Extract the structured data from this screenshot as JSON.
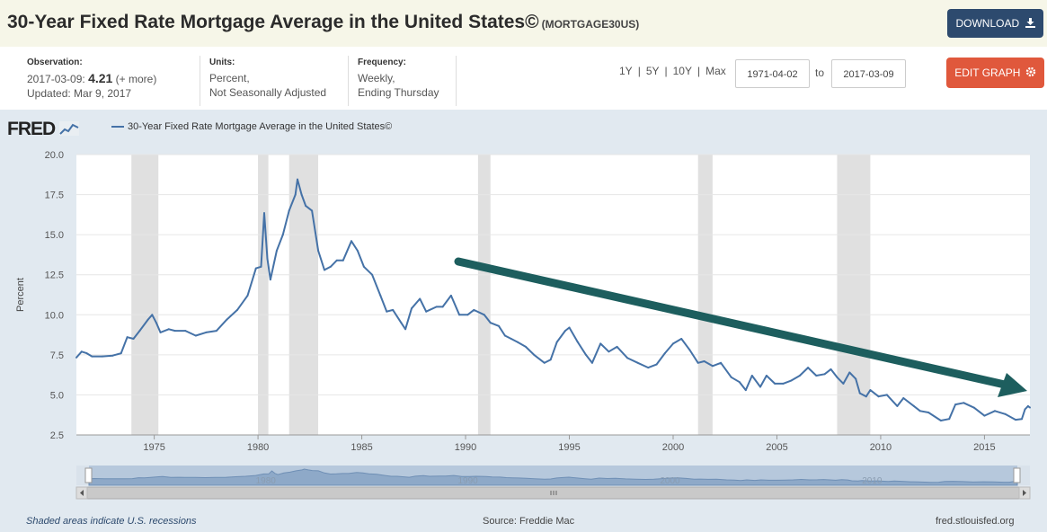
{
  "header": {
    "title": "30-Year Fixed Rate Mortgage Average in the United States©",
    "series_code": "(MORTGAGE30US)",
    "download_label": "DOWNLOAD"
  },
  "info": {
    "observation_label": "Observation:",
    "observation_date": "2017-03-09:",
    "observation_value": "4.21",
    "observation_more": "(+ more)",
    "updated": "Updated: Mar 9, 2017",
    "units_label": "Units:",
    "units_line1": "Percent,",
    "units_line2": "Not Seasonally Adjusted",
    "frequency_label": "Frequency:",
    "frequency_line1": "Weekly,",
    "frequency_line2": "Ending Thursday"
  },
  "controls": {
    "ranges": [
      "1Y",
      "5Y",
      "10Y",
      "Max"
    ],
    "separator": "|",
    "start_date": "1971-04-02",
    "to_label": "to",
    "end_date": "2017-03-09",
    "edit_label": "EDIT GRAPH"
  },
  "brand": {
    "logo": "FRED"
  },
  "footer": {
    "recession_note": "Shaded areas indicate U.S. recessions",
    "source": "Source: Freddie Mac",
    "site": "fred.stlouisfed.org"
  },
  "colors": {
    "series": "#4572a7",
    "recession": "#e0e0e0",
    "arrow": "#1d5e5e",
    "download_button": "#2d4a6e",
    "edit_button": "#e0583c"
  },
  "icons": {
    "download": "download-icon",
    "edit": "gear-icon",
    "logo_chart": "chart-icon",
    "scroll_left": "chevron-left-icon",
    "scroll_right": "chevron-right-icon"
  },
  "chart_data": {
    "type": "line",
    "ylabel": "Percent",
    "xlim": [
      1971.25,
      2017.19
    ],
    "ylim": [
      2.5,
      20.0
    ],
    "x_ticks": [
      1975,
      1980,
      1985,
      1990,
      1995,
      2000,
      2005,
      2010,
      2015
    ],
    "y_ticks": [
      2.5,
      5.0,
      7.5,
      10.0,
      12.5,
      15.0,
      17.5,
      20.0
    ],
    "y_tick_labels": [
      "2.5",
      "5.0",
      "7.5",
      "10.0",
      "12.5",
      "15.0",
      "17.5",
      "20.0"
    ],
    "grid": true,
    "recessions": [
      [
        1973.9,
        1975.2
      ],
      [
        1980.0,
        1980.5
      ],
      [
        1981.5,
        1982.9
      ],
      [
        1990.6,
        1991.2
      ],
      [
        2001.2,
        2001.9
      ],
      [
        2007.9,
        2009.5
      ]
    ],
    "series": [
      {
        "name": "30-Year Fixed Rate Mortgage Average in the United States©",
        "points": [
          [
            1971.25,
            7.33
          ],
          [
            1971.5,
            7.7
          ],
          [
            1971.75,
            7.6
          ],
          [
            1972.0,
            7.4
          ],
          [
            1972.5,
            7.4
          ],
          [
            1973.0,
            7.45
          ],
          [
            1973.4,
            7.6
          ],
          [
            1973.7,
            8.6
          ],
          [
            1974.0,
            8.5
          ],
          [
            1974.3,
            9.0
          ],
          [
            1974.7,
            9.7
          ],
          [
            1974.9,
            10.0
          ],
          [
            1975.1,
            9.5
          ],
          [
            1975.3,
            8.9
          ],
          [
            1975.7,
            9.1
          ],
          [
            1976.0,
            9.0
          ],
          [
            1976.5,
            9.0
          ],
          [
            1977.0,
            8.7
          ],
          [
            1977.5,
            8.9
          ],
          [
            1978.0,
            9.0
          ],
          [
            1978.5,
            9.7
          ],
          [
            1979.0,
            10.3
          ],
          [
            1979.5,
            11.2
          ],
          [
            1979.9,
            12.9
          ],
          [
            1980.15,
            13.0
          ],
          [
            1980.3,
            16.35
          ],
          [
            1980.45,
            13.5
          ],
          [
            1980.6,
            12.2
          ],
          [
            1980.9,
            14.0
          ],
          [
            1981.2,
            15.0
          ],
          [
            1981.5,
            16.5
          ],
          [
            1981.8,
            17.5
          ],
          [
            1981.9,
            18.45
          ],
          [
            1982.1,
            17.5
          ],
          [
            1982.3,
            16.8
          ],
          [
            1982.6,
            16.5
          ],
          [
            1982.9,
            14.0
          ],
          [
            1983.2,
            12.8
          ],
          [
            1983.5,
            13.0
          ],
          [
            1983.8,
            13.4
          ],
          [
            1984.1,
            13.4
          ],
          [
            1984.5,
            14.6
          ],
          [
            1984.8,
            14.0
          ],
          [
            1985.1,
            13.0
          ],
          [
            1985.5,
            12.5
          ],
          [
            1985.9,
            11.2
          ],
          [
            1986.2,
            10.2
          ],
          [
            1986.5,
            10.3
          ],
          [
            1986.9,
            9.5
          ],
          [
            1987.1,
            9.1
          ],
          [
            1987.4,
            10.4
          ],
          [
            1987.8,
            11.0
          ],
          [
            1988.1,
            10.2
          ],
          [
            1988.6,
            10.5
          ],
          [
            1988.9,
            10.5
          ],
          [
            1989.3,
            11.2
          ],
          [
            1989.7,
            10.0
          ],
          [
            1990.1,
            10.0
          ],
          [
            1990.4,
            10.3
          ],
          [
            1990.9,
            10.0
          ],
          [
            1991.2,
            9.5
          ],
          [
            1991.6,
            9.3
          ],
          [
            1991.9,
            8.7
          ],
          [
            1992.2,
            8.5
          ],
          [
            1992.5,
            8.3
          ],
          [
            1992.9,
            8.0
          ],
          [
            1993.3,
            7.5
          ],
          [
            1993.8,
            7.0
          ],
          [
            1994.1,
            7.2
          ],
          [
            1994.4,
            8.3
          ],
          [
            1994.8,
            9.0
          ],
          [
            1995.0,
            9.2
          ],
          [
            1995.4,
            8.3
          ],
          [
            1995.8,
            7.5
          ],
          [
            1996.1,
            7.0
          ],
          [
            1996.5,
            8.2
          ],
          [
            1996.9,
            7.7
          ],
          [
            1997.3,
            8.0
          ],
          [
            1997.8,
            7.3
          ],
          [
            1998.3,
            7.0
          ],
          [
            1998.8,
            6.7
          ],
          [
            1999.2,
            6.9
          ],
          [
            1999.6,
            7.6
          ],
          [
            2000.0,
            8.2
          ],
          [
            2000.4,
            8.5
          ],
          [
            2000.8,
            7.8
          ],
          [
            2001.2,
            7.0
          ],
          [
            2001.5,
            7.1
          ],
          [
            2001.9,
            6.8
          ],
          [
            2002.3,
            7.0
          ],
          [
            2002.8,
            6.1
          ],
          [
            2003.2,
            5.8
          ],
          [
            2003.5,
            5.3
          ],
          [
            2003.8,
            6.2
          ],
          [
            2004.2,
            5.5
          ],
          [
            2004.5,
            6.2
          ],
          [
            2004.9,
            5.7
          ],
          [
            2005.3,
            5.7
          ],
          [
            2005.7,
            5.9
          ],
          [
            2006.1,
            6.2
          ],
          [
            2006.5,
            6.7
          ],
          [
            2006.9,
            6.2
          ],
          [
            2007.3,
            6.3
          ],
          [
            2007.6,
            6.6
          ],
          [
            2007.9,
            6.1
          ],
          [
            2008.2,
            5.7
          ],
          [
            2008.5,
            6.4
          ],
          [
            2008.8,
            6.0
          ],
          [
            2009.0,
            5.1
          ],
          [
            2009.3,
            4.9
          ],
          [
            2009.5,
            5.3
          ],
          [
            2009.9,
            4.9
          ],
          [
            2010.3,
            5.0
          ],
          [
            2010.8,
            4.3
          ],
          [
            2011.1,
            4.8
          ],
          [
            2011.6,
            4.3
          ],
          [
            2011.9,
            4.0
          ],
          [
            2012.3,
            3.9
          ],
          [
            2012.9,
            3.4
          ],
          [
            2013.3,
            3.5
          ],
          [
            2013.6,
            4.4
          ],
          [
            2014.0,
            4.5
          ],
          [
            2014.5,
            4.2
          ],
          [
            2015.0,
            3.7
          ],
          [
            2015.5,
            4.0
          ],
          [
            2016.0,
            3.8
          ],
          [
            2016.5,
            3.45
          ],
          [
            2016.8,
            3.5
          ],
          [
            2016.95,
            4.1
          ],
          [
            2017.1,
            4.3
          ],
          [
            2017.19,
            4.21
          ]
        ]
      }
    ]
  }
}
